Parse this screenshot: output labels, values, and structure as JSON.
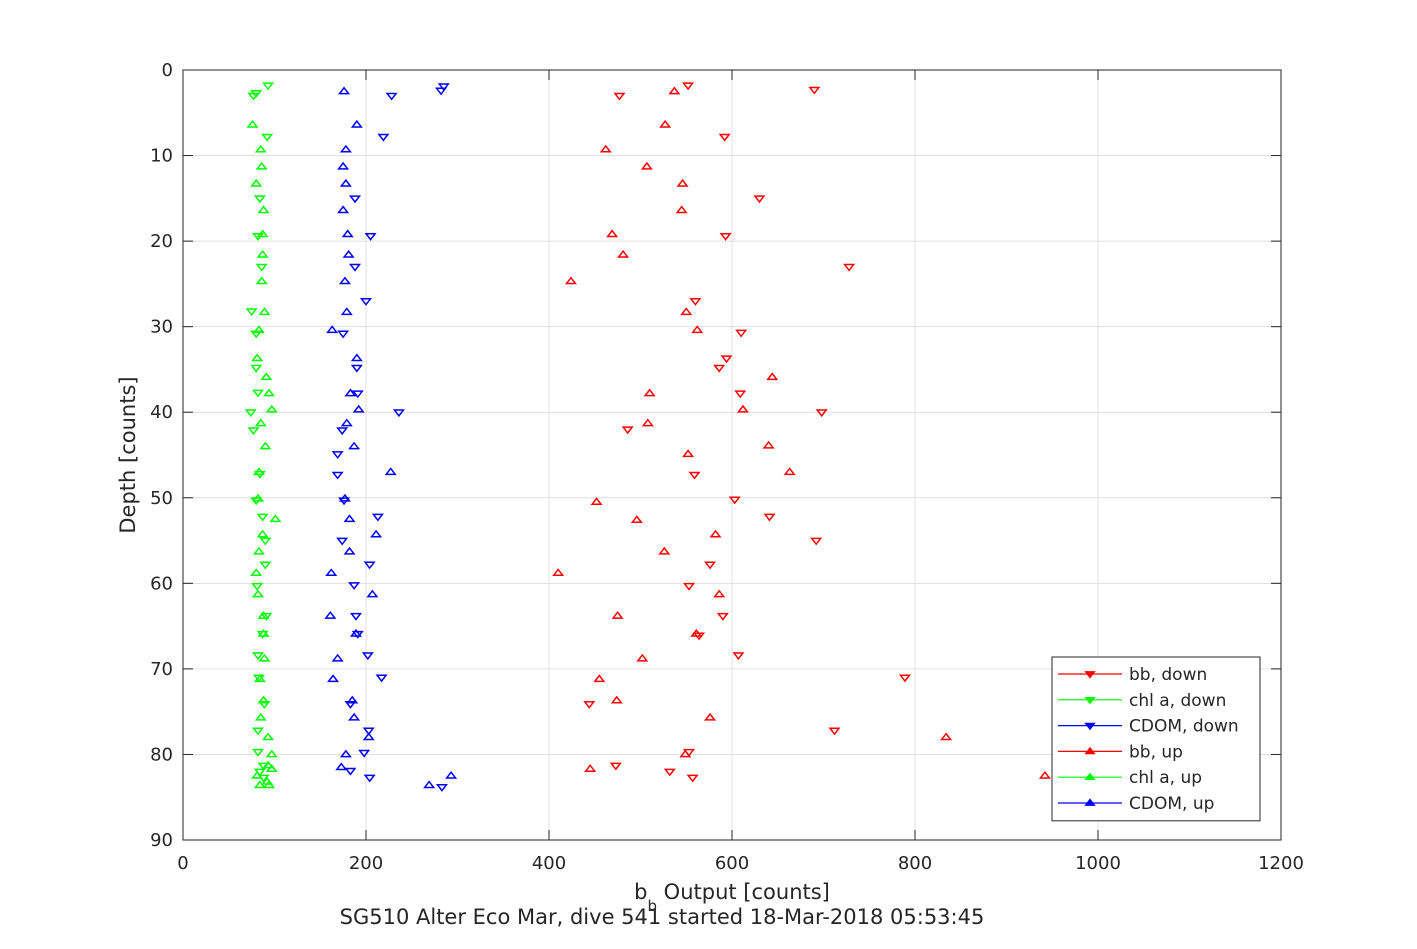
{
  "figure": {
    "caption": "SG510 Alter Eco Mar, dive 541 started 18-Mar-2018 05:53:45"
  },
  "chart_data": {
    "type": "scatter",
    "xlabel": "b",
    "xlabel_sub": "b",
    "xlabel_rest": " Output [counts]",
    "ylabel": "Depth [counts]",
    "xlim": [
      0,
      1200
    ],
    "ylim": [
      0,
      90
    ],
    "y_reversed": true,
    "grid": true,
    "legend_position": "bottom-right",
    "xticks": [
      0,
      200,
      400,
      600,
      800,
      1000,
      1200
    ],
    "yticks": [
      0,
      10,
      20,
      30,
      40,
      50,
      60,
      70,
      80,
      90
    ],
    "series": [
      {
        "name": "bb, down",
        "marker": "triangle-down",
        "color": "#ff0000",
        "points": [
          [
            552,
            1.8
          ],
          [
            690,
            2.3
          ],
          [
            477,
            3.0
          ],
          [
            592,
            7.8
          ],
          [
            630,
            15.0
          ],
          [
            593,
            19.4
          ],
          [
            728,
            23.0
          ],
          [
            560,
            27.0
          ],
          [
            610,
            30.7
          ],
          [
            594,
            33.7
          ],
          [
            586,
            34.8
          ],
          [
            609,
            37.8
          ],
          [
            698,
            40.0
          ],
          [
            486,
            42.0
          ],
          [
            559,
            47.3
          ],
          [
            603,
            50.2
          ],
          [
            641,
            52.2
          ],
          [
            692,
            55.0
          ],
          [
            576,
            57.8
          ],
          [
            553,
            60.3
          ],
          [
            590,
            63.8
          ],
          [
            564,
            66.1
          ],
          [
            607,
            68.4
          ],
          [
            789,
            71.0
          ],
          [
            444,
            74.1
          ],
          [
            712,
            77.2
          ],
          [
            553,
            79.7
          ],
          [
            473,
            81.3
          ],
          [
            532,
            82.0
          ],
          [
            557,
            82.7
          ]
        ]
      },
      {
        "name": "chl a, down",
        "marker": "triangle-down",
        "color": "#00ff00",
        "points": [
          [
            93,
            1.8
          ],
          [
            80,
            2.7
          ],
          [
            77,
            3.0
          ],
          [
            92,
            7.8
          ],
          [
            84,
            15.0
          ],
          [
            82,
            19.4
          ],
          [
            86,
            23.0
          ],
          [
            75,
            28.2
          ],
          [
            80,
            30.8
          ],
          [
            80,
            34.8
          ],
          [
            82,
            37.7
          ],
          [
            74,
            40.0
          ],
          [
            77,
            42.1
          ],
          [
            84,
            47.2
          ],
          [
            80,
            50.3
          ],
          [
            87,
            52.2
          ],
          [
            90,
            55.0
          ],
          [
            90,
            57.8
          ],
          [
            81,
            60.3
          ],
          [
            91,
            63.8
          ],
          [
            87,
            65.9
          ],
          [
            82,
            68.4
          ],
          [
            83,
            71.0
          ],
          [
            89,
            74.1
          ],
          [
            82,
            77.2
          ],
          [
            82,
            79.7
          ],
          [
            88,
            81.3
          ],
          [
            84,
            82.0
          ],
          [
            88,
            82.7
          ]
        ]
      },
      {
        "name": "CDOM, down",
        "marker": "triangle-down",
        "color": "#0000ff",
        "points": [
          [
            285,
            1.9
          ],
          [
            282,
            2.4
          ],
          [
            228,
            3.0
          ],
          [
            219,
            7.8
          ],
          [
            188,
            15.0
          ],
          [
            205,
            19.4
          ],
          [
            188,
            23.0
          ],
          [
            200,
            27.0
          ],
          [
            175,
            30.8
          ],
          [
            190,
            34.8
          ],
          [
            191,
            37.8
          ],
          [
            236,
            40.0
          ],
          [
            174,
            42.1
          ],
          [
            169,
            44.9
          ],
          [
            169,
            47.3
          ],
          [
            176,
            50.3
          ],
          [
            213,
            52.2
          ],
          [
            174,
            55.0
          ],
          [
            204,
            57.8
          ],
          [
            187,
            60.2
          ],
          [
            189,
            63.8
          ],
          [
            191,
            65.9
          ],
          [
            202,
            68.4
          ],
          [
            217,
            71.0
          ],
          [
            183,
            74.1
          ],
          [
            203,
            77.2
          ],
          [
            198,
            79.8
          ],
          [
            183,
            81.9
          ],
          [
            204,
            82.7
          ],
          [
            283,
            83.8
          ]
        ]
      },
      {
        "name": "bb, up",
        "marker": "triangle-up",
        "color": "#ff0000",
        "points": [
          [
            537,
            2.5
          ],
          [
            527,
            6.4
          ],
          [
            462,
            9.3
          ],
          [
            507,
            11.3
          ],
          [
            546,
            13.3
          ],
          [
            545,
            16.4
          ],
          [
            469,
            19.2
          ],
          [
            481,
            21.6
          ],
          [
            424,
            24.7
          ],
          [
            550,
            28.3
          ],
          [
            562,
            30.4
          ],
          [
            644,
            35.9
          ],
          [
            510,
            37.8
          ],
          [
            612,
            39.7
          ],
          [
            508,
            41.3
          ],
          [
            552,
            44.9
          ],
          [
            640,
            43.9
          ],
          [
            663,
            47.0
          ],
          [
            452,
            50.5
          ],
          [
            496,
            52.6
          ],
          [
            582,
            54.3
          ],
          [
            526,
            56.3
          ],
          [
            410,
            58.8
          ],
          [
            586,
            61.3
          ],
          [
            475,
            63.8
          ],
          [
            561,
            65.9
          ],
          [
            502,
            68.8
          ],
          [
            455,
            71.2
          ],
          [
            474,
            73.7
          ],
          [
            576,
            75.7
          ],
          [
            834,
            78.0
          ],
          [
            549,
            80.0
          ],
          [
            445,
            81.7
          ],
          [
            942,
            82.5
          ]
        ]
      },
      {
        "name": "chl a, up",
        "marker": "triangle-up",
        "color": "#00ff00",
        "points": [
          [
            76,
            6.4
          ],
          [
            85,
            9.3
          ],
          [
            86,
            11.3
          ],
          [
            80,
            13.3
          ],
          [
            88,
            16.4
          ],
          [
            87,
            19.2
          ],
          [
            87,
            21.6
          ],
          [
            86,
            24.7
          ],
          [
            89,
            28.3
          ],
          [
            83,
            30.4
          ],
          [
            81,
            33.7
          ],
          [
            91,
            35.9
          ],
          [
            94,
            37.8
          ],
          [
            97,
            39.7
          ],
          [
            85,
            41.3
          ],
          [
            90,
            44.0
          ],
          [
            83,
            47.0
          ],
          [
            82,
            50.1
          ],
          [
            101,
            52.5
          ],
          [
            87,
            54.3
          ],
          [
            83,
            56.3
          ],
          [
            80,
            58.8
          ],
          [
            82,
            61.3
          ],
          [
            88,
            63.8
          ],
          [
            88,
            65.9
          ],
          [
            89,
            68.8
          ],
          [
            84,
            71.2
          ],
          [
            88,
            73.7
          ],
          [
            85,
            75.7
          ],
          [
            93,
            78.0
          ],
          [
            97,
            80.0
          ],
          [
            93,
            81.3
          ],
          [
            97,
            81.7
          ],
          [
            81,
            82.5
          ],
          [
            92,
            83.2
          ],
          [
            84,
            83.6
          ],
          [
            94,
            83.6
          ]
        ]
      },
      {
        "name": "CDOM, up",
        "marker": "triangle-up",
        "color": "#0000ff",
        "points": [
          [
            176,
            2.5
          ],
          [
            190,
            6.4
          ],
          [
            178,
            9.3
          ],
          [
            175,
            11.3
          ],
          [
            178,
            13.3
          ],
          [
            175,
            16.4
          ],
          [
            180,
            19.2
          ],
          [
            181,
            21.6
          ],
          [
            177,
            24.7
          ],
          [
            179,
            28.3
          ],
          [
            163,
            30.4
          ],
          [
            190,
            33.7
          ],
          [
            183,
            37.8
          ],
          [
            192,
            39.7
          ],
          [
            179,
            41.3
          ],
          [
            187,
            44.0
          ],
          [
            227,
            47.0
          ],
          [
            177,
            50.1
          ],
          [
            182,
            52.5
          ],
          [
            211,
            54.3
          ],
          [
            182,
            56.3
          ],
          [
            162,
            58.8
          ],
          [
            207,
            61.3
          ],
          [
            161,
            63.8
          ],
          [
            189,
            65.9
          ],
          [
            169,
            68.8
          ],
          [
            164,
            71.2
          ],
          [
            185,
            73.7
          ],
          [
            187,
            75.7
          ],
          [
            203,
            78.0
          ],
          [
            178,
            80.0
          ],
          [
            173,
            81.5
          ],
          [
            293,
            82.5
          ],
          [
            269,
            83.6
          ]
        ]
      }
    ]
  }
}
